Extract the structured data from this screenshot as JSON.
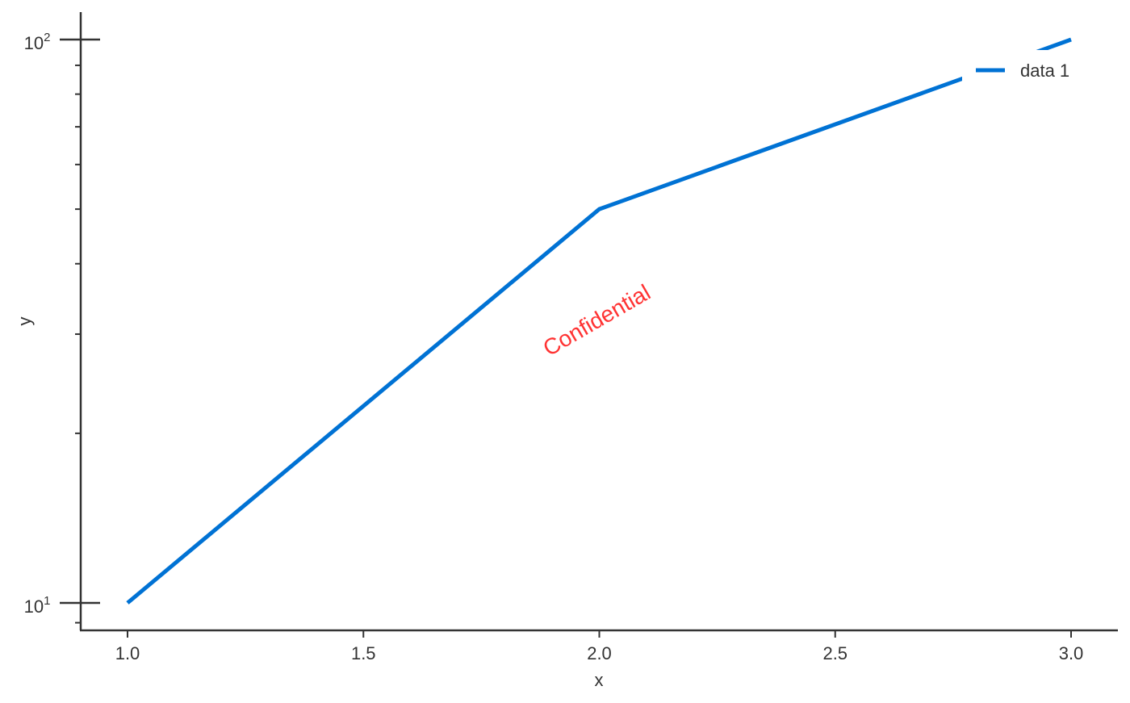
{
  "chart_data": {
    "type": "line",
    "title": "",
    "xlabel": "x",
    "ylabel": "y",
    "xlim": [
      0.9,
      3.1
    ],
    "ylim": [
      9.5,
      105
    ],
    "yscale": "log",
    "grid": false,
    "legend_position": "top-right",
    "x_ticks": [
      {
        "value": 1.0,
        "label": "1.0"
      },
      {
        "value": 1.5,
        "label": "1.5"
      },
      {
        "value": 2.0,
        "label": "2.0"
      },
      {
        "value": 2.5,
        "label": "2.5"
      },
      {
        "value": 3.0,
        "label": "3.0"
      }
    ],
    "y_major_ticks": [
      {
        "value": 10,
        "base": "10",
        "exp": "1"
      },
      {
        "value": 100,
        "base": "10",
        "exp": "2"
      }
    ],
    "y_minor_ticks": [
      20,
      30,
      40,
      50,
      60,
      70,
      80,
      90
    ],
    "series": [
      {
        "name": "data 1",
        "color": "#0072d4",
        "x": [
          1,
          2,
          3
        ],
        "y": [
          10,
          50,
          100
        ]
      }
    ],
    "watermark": {
      "text": "Confidential",
      "color": "#ff3333"
    }
  }
}
